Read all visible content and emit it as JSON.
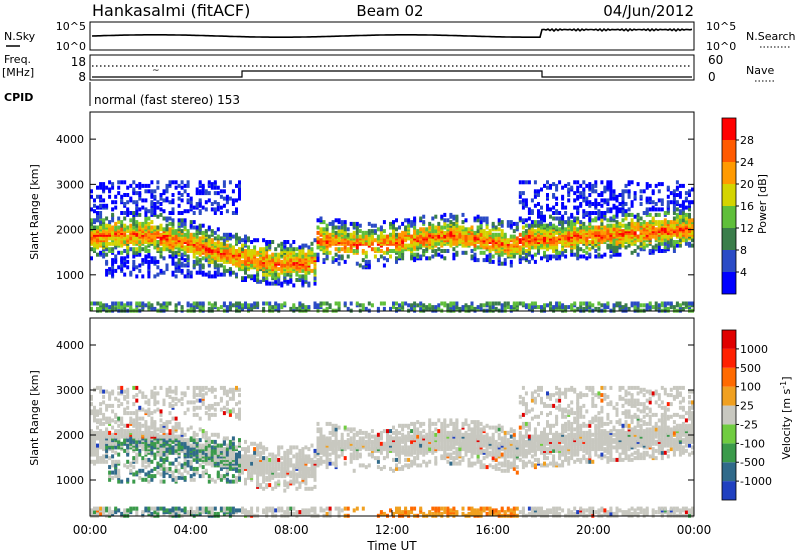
{
  "header": {
    "station": "Hankasalmi (fitACF)",
    "beam": "Beam 02",
    "date": "04/Jun/2012"
  },
  "noise_panel": {
    "left_label": "N.Sky",
    "right_label": "N.Search",
    "left_ticks": [
      "10^5",
      "10^0"
    ],
    "right_ticks": [
      "10^5",
      "10^0"
    ]
  },
  "freq_panel": {
    "left_label_1": "Freq.",
    "left_label_2": "[MHz]",
    "left_ticks": [
      "18",
      "8"
    ],
    "right_label": "Nave",
    "right_ticks": [
      "60",
      "0"
    ]
  },
  "cpid": {
    "label": "CPID",
    "text": "normal (fast stereo) 153"
  },
  "chart_data": [
    {
      "type": "heatmap",
      "name": "power",
      "ylabel": "Slant Range [km]",
      "y_ticks": [
        1000,
        2000,
        3000,
        4000
      ],
      "ylim": [
        200,
        4600
      ],
      "xlim": [
        0,
        24
      ],
      "colorbar": {
        "label": "Power [dB]",
        "ticks": [
          "28",
          "24",
          "20",
          "16",
          "12",
          "8",
          "4"
        ],
        "colors": [
          "#0000ff",
          "#2b4bc6",
          "#3a7d4a",
          "#5fbf3a",
          "#d4d400",
          "#ff9a00",
          "#ff5a00",
          "#ff0000"
        ]
      }
    },
    {
      "type": "heatmap",
      "name": "velocity",
      "ylabel": "Slant Range [km]",
      "y_ticks": [
        1000,
        2000,
        3000,
        4000
      ],
      "ylim": [
        200,
        4600
      ],
      "xlim": [
        0,
        24
      ],
      "xlabel": "Time UT",
      "x_ticks": [
        "00:00",
        "04:00",
        "08:00",
        "12:00",
        "16:00",
        "20:00",
        "00:00"
      ],
      "colorbar": {
        "label": "Velocity [m s",
        "label_sup": "-1",
        "label_end": "]",
        "ticks": [
          "1000",
          "500",
          "100",
          "25",
          "-25",
          "-100",
          "-500",
          "-1000"
        ],
        "colors": [
          "#2040c0",
          "#306a8a",
          "#3a9a4a",
          "#70cc40",
          "#c8c8c0",
          "#f0a020",
          "#ff6a00",
          "#ff2000",
          "#e00000"
        ]
      }
    }
  ]
}
